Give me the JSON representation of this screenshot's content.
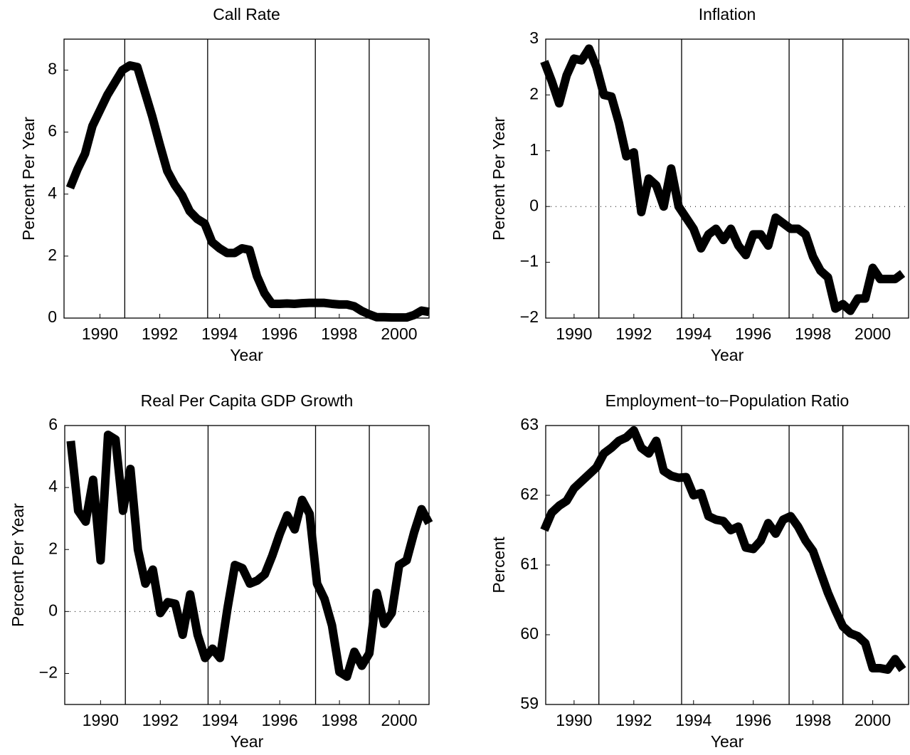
{
  "chart_data": [
    {
      "type": "line",
      "title": "Call Rate",
      "xlabel": "Year",
      "ylabel": "Percent Per Year",
      "x": [
        1989,
        1989.25,
        1989.5,
        1989.75,
        1990,
        1990.25,
        1990.5,
        1990.75,
        1991,
        1991.25,
        1991.5,
        1991.75,
        1992,
        1992.25,
        1992.5,
        1992.75,
        1993,
        1993.25,
        1993.5,
        1993.75,
        1994,
        1994.25,
        1994.5,
        1994.75,
        1995,
        1995.25,
        1995.5,
        1995.75,
        1996,
        1996.25,
        1996.5,
        1996.75,
        1997,
        1997.25,
        1997.5,
        1997.75,
        1998,
        1998.25,
        1998.5,
        1998.75,
        1999,
        1999.25,
        1999.5,
        1999.75,
        2000,
        2000.25,
        2000.5,
        2000.75,
        2001
      ],
      "values": [
        4.2,
        4.8,
        5.3,
        6.2,
        6.7,
        7.2,
        7.6,
        8.0,
        8.15,
        8.1,
        7.3,
        6.5,
        5.6,
        4.75,
        4.3,
        3.95,
        3.45,
        3.2,
        3.05,
        2.45,
        2.25,
        2.1,
        2.1,
        2.25,
        2.2,
        1.35,
        0.8,
        0.46,
        0.46,
        0.47,
        0.46,
        0.48,
        0.49,
        0.49,
        0.49,
        0.46,
        0.44,
        0.44,
        0.38,
        0.23,
        0.12,
        0.03,
        0.03,
        0.02,
        0.02,
        0.02,
        0.1,
        0.24,
        0.2
      ],
      "color": "#000000",
      "xlim": [
        1988.8,
        2001
      ],
      "ylim": [
        0,
        9
      ],
      "xticks": [
        1990,
        1992,
        1994,
        1996,
        1998,
        2000
      ],
      "yticks": [
        0,
        2,
        4,
        6,
        8
      ],
      "vlines": [
        1990.83,
        1993.6,
        1997.2,
        1999.0
      ]
    },
    {
      "type": "line",
      "title": "Inflation",
      "xlabel": "Year",
      "ylabel": "Percent Per Year",
      "x": [
        1989,
        1989.25,
        1989.5,
        1989.75,
        1990,
        1990.25,
        1990.5,
        1990.75,
        1991,
        1991.25,
        1991.5,
        1991.75,
        1992,
        1992.25,
        1992.5,
        1992.75,
        1993,
        1993.25,
        1993.5,
        1993.75,
        1994,
        1994.25,
        1994.5,
        1994.75,
        1995,
        1995.25,
        1995.5,
        1995.75,
        1996,
        1996.25,
        1996.5,
        1996.75,
        1997,
        1997.25,
        1997.5,
        1997.75,
        1998,
        1998.25,
        1998.5,
        1998.75,
        1999,
        1999.25,
        1999.5,
        1999.75,
        2000,
        2000.25,
        2000.5,
        2000.75,
        2001
      ],
      "values": [
        2.6,
        2.25,
        1.85,
        2.35,
        2.65,
        2.62,
        2.83,
        2.5,
        2.0,
        1.97,
        1.5,
        0.9,
        0.97,
        -0.1,
        0.5,
        0.38,
        0.0,
        0.68,
        0.0,
        -0.2,
        -0.4,
        -0.75,
        -0.5,
        -0.4,
        -0.6,
        -0.4,
        -0.7,
        -0.87,
        -0.5,
        -0.5,
        -0.7,
        -0.2,
        -0.3,
        -0.4,
        -0.4,
        -0.5,
        -0.9,
        -1.15,
        -1.27,
        -1.83,
        -1.75,
        -1.87,
        -1.65,
        -1.65,
        -1.1,
        -1.3,
        -1.3,
        -1.3,
        -1.2
      ],
      "color": "#000000",
      "xlim": [
        1989.05,
        2001.2
      ],
      "ylim": [
        -2,
        3
      ],
      "xticks": [
        1990,
        1992,
        1994,
        1996,
        1998,
        2000
      ],
      "yticks": [
        {
          "value": -2,
          "label": "−2"
        },
        {
          "value": -1,
          "label": "−1"
        },
        0,
        1,
        2,
        3
      ],
      "vlines": [
        1990.83,
        1993.6,
        1997.2,
        1999.0
      ],
      "hline": 0
    },
    {
      "type": "line",
      "title": "Real  Per Capita GDP  Growth",
      "xlabel": "Year",
      "ylabel": "Percent Per Year",
      "x": [
        1989,
        1989.25,
        1989.5,
        1989.75,
        1990,
        1990.25,
        1990.5,
        1990.75,
        1991,
        1991.25,
        1991.5,
        1991.75,
        1992,
        1992.25,
        1992.5,
        1992.75,
        1993,
        1993.25,
        1993.5,
        1993.75,
        1994,
        1994.25,
        1994.5,
        1994.75,
        1995,
        1995.25,
        1995.5,
        1995.75,
        1996,
        1996.25,
        1996.5,
        1996.75,
        1997,
        1997.25,
        1997.5,
        1997.75,
        1998,
        1998.25,
        1998.5,
        1998.75,
        1999,
        1999.25,
        1999.5,
        1999.75,
        2000,
        2000.25,
        2000.5,
        2000.75,
        2001
      ],
      "values": [
        5.5,
        3.25,
        2.9,
        4.25,
        1.65,
        5.7,
        5.55,
        3.25,
        4.6,
        2.0,
        0.9,
        1.35,
        -0.05,
        0.3,
        0.25,
        -0.75,
        0.55,
        -0.75,
        -1.5,
        -1.2,
        -1.5,
        0.1,
        1.5,
        1.4,
        0.9,
        1.0,
        1.2,
        1.8,
        2.5,
        3.1,
        2.65,
        3.6,
        3.15,
        0.9,
        0.4,
        -0.45,
        -1.95,
        -2.1,
        -1.3,
        -1.75,
        -1.35,
        0.6,
        -0.4,
        -0.05,
        1.5,
        1.65,
        2.55,
        3.3,
        2.85
      ],
      "color": "#000000",
      "xlim": [
        1988.8,
        2001
      ],
      "ylim": [
        -3,
        6
      ],
      "xticks": [
        1990,
        1992,
        1994,
        1996,
        1998,
        2000
      ],
      "yticks": [
        {
          "value": -2,
          "label": "−2"
        },
        0,
        2,
        4,
        6
      ],
      "vlines": [
        1990.83,
        1993.6,
        1997.2,
        1999.0
      ],
      "hline": 0
    },
    {
      "type": "line",
      "title": "Employment−to−Population Ratio",
      "xlabel": "Year",
      "ylabel": "Percent",
      "x": [
        1989,
        1989.25,
        1989.5,
        1989.75,
        1990,
        1990.25,
        1990.5,
        1990.75,
        1991,
        1991.25,
        1991.5,
        1991.75,
        1992,
        1992.25,
        1992.5,
        1992.75,
        1993,
        1993.25,
        1993.5,
        1993.75,
        1994,
        1994.25,
        1994.5,
        1994.75,
        1995,
        1995.25,
        1995.5,
        1995.75,
        1996,
        1996.25,
        1996.5,
        1996.75,
        1997,
        1997.25,
        1997.5,
        1997.75,
        1998,
        1998.25,
        1998.5,
        1998.75,
        1999,
        1999.25,
        1999.5,
        1999.75,
        2000,
        2000.25,
        2000.5,
        2000.75,
        2001
      ],
      "values": [
        61.5,
        61.75,
        61.85,
        61.92,
        62.1,
        62.2,
        62.3,
        62.4,
        62.6,
        62.68,
        62.78,
        62.83,
        62.93,
        62.68,
        62.6,
        62.78,
        62.35,
        62.28,
        62.25,
        62.26,
        62.0,
        62.03,
        61.7,
        61.65,
        61.63,
        61.5,
        61.55,
        61.25,
        61.23,
        61.35,
        61.6,
        61.45,
        61.65,
        61.7,
        61.55,
        61.35,
        61.2,
        60.9,
        60.6,
        60.35,
        60.12,
        60.02,
        59.98,
        59.88,
        59.52,
        59.52,
        59.5,
        59.65,
        59.5
      ],
      "color": "#000000",
      "xlim": [
        1989.05,
        2001.2
      ],
      "ylim": [
        59,
        63
      ],
      "xticks": [
        1990,
        1992,
        1994,
        1996,
        1998,
        2000
      ],
      "yticks": [
        59,
        60,
        61,
        62,
        63
      ],
      "vlines": [
        1990.83,
        1993.6,
        1997.2,
        1999.0
      ]
    }
  ]
}
